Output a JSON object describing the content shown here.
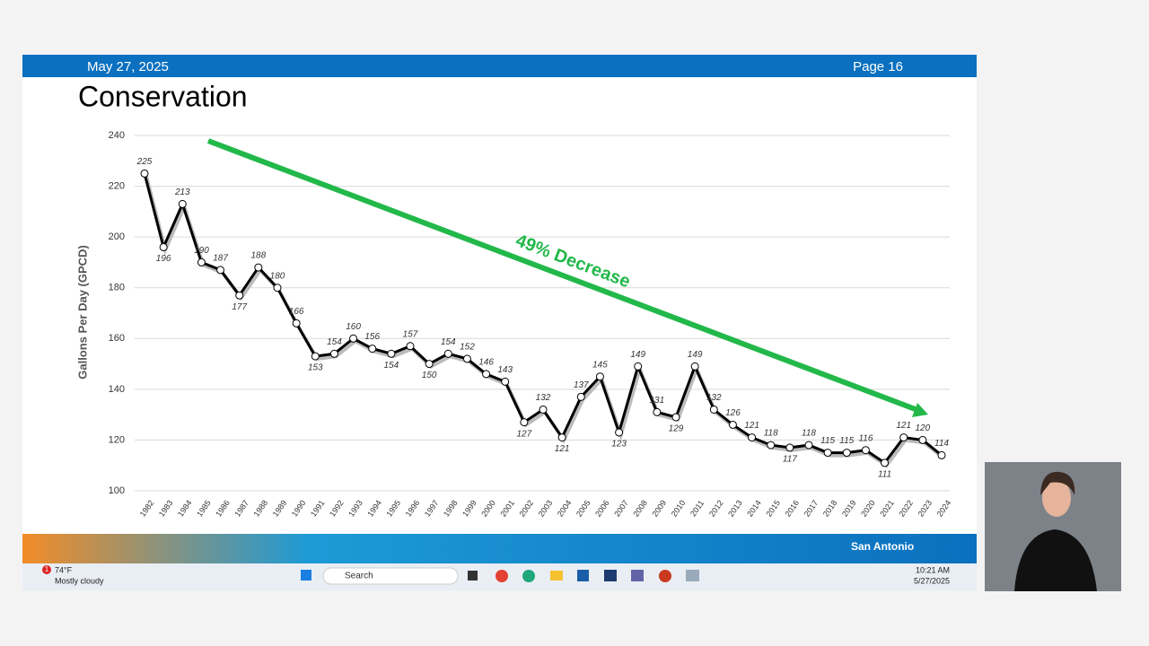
{
  "header": {
    "date": "May 27, 2025",
    "page": "Page 16"
  },
  "chart_data": {
    "type": "line",
    "title": "Conservation",
    "y_label": "Gallons Per Day (GPCD)",
    "annotation": "49% Decrease",
    "categories": [
      "1982",
      "1983",
      "1984",
      "1985",
      "1986",
      "1987",
      "1988",
      "1989",
      "1990",
      "1991",
      "1992",
      "1993",
      "1994",
      "1995",
      "1996",
      "1997",
      "1998",
      "1999",
      "2000",
      "2001",
      "2002",
      "2003",
      "2004",
      "2005",
      "2006",
      "2007",
      "2008",
      "2009",
      "2010",
      "2011",
      "2012",
      "2013",
      "2014",
      "2015",
      "2016",
      "2017",
      "2018",
      "2019",
      "2020",
      "2021",
      "2022",
      "2023",
      "2024"
    ],
    "values": [
      225,
      196,
      213,
      190,
      187,
      177,
      188,
      180,
      166,
      153,
      154,
      160,
      156,
      154,
      157,
      150,
      154,
      152,
      146,
      143,
      127,
      132,
      121,
      137,
      145,
      123,
      149,
      131,
      129,
      149,
      132,
      126,
      121,
      118,
      117,
      118,
      115,
      115,
      116,
      111,
      121,
      120,
      114
    ],
    "color": "#000000",
    "ylim": [
      100,
      240
    ],
    "yticks": [
      100,
      120,
      140,
      160,
      180,
      200,
      220,
      240
    ],
    "grid": true
  },
  "footer": {
    "logo": "San Antonio"
  },
  "taskbar": {
    "badge": "1",
    "temp": "74°F",
    "weather": "Mostly cloudy",
    "search": "Search",
    "time": "10:21 AM",
    "date": "5/27/2025"
  }
}
